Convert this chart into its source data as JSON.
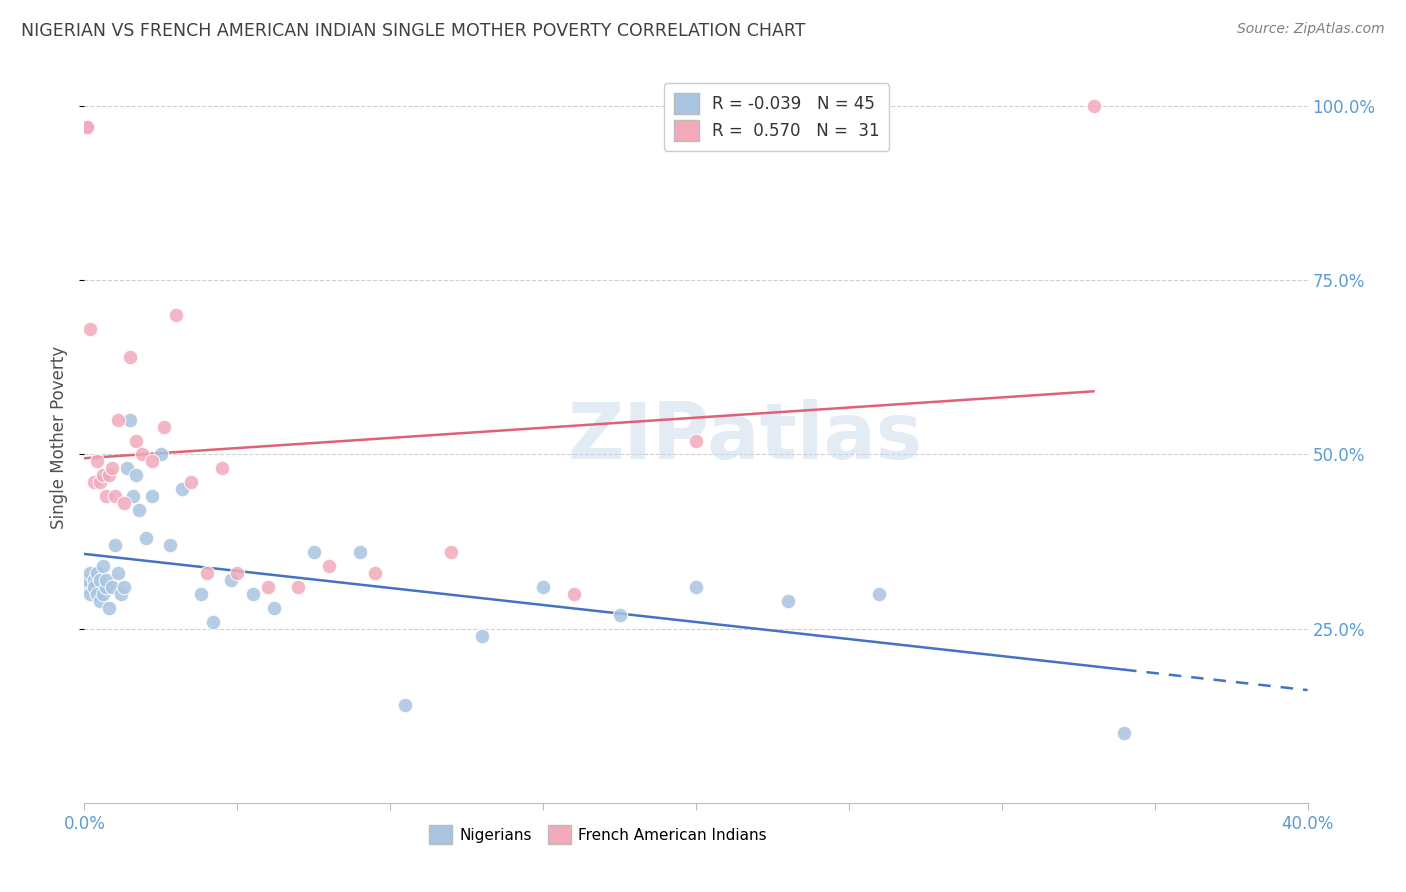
{
  "title": "NIGERIAN VS FRENCH AMERICAN INDIAN SINGLE MOTHER POVERTY CORRELATION CHART",
  "source": "Source: ZipAtlas.com",
  "ylabel": "Single Mother Poverty",
  "xmin": 0.0,
  "xmax": 0.4,
  "ymin": 0.0,
  "ymax": 1.05,
  "nigerian_r": "-0.039",
  "nigerian_n": "45",
  "french_r": "0.570",
  "french_n": "31",
  "nigerian_color": "#A8C4E0",
  "french_color": "#F2AABA",
  "nigerian_line_color": "#4472C4",
  "french_line_color": "#E0607A",
  "nigerian_x": [
    0.001,
    0.001,
    0.002,
    0.002,
    0.003,
    0.003,
    0.004,
    0.004,
    0.005,
    0.005,
    0.006,
    0.006,
    0.007,
    0.007,
    0.008,
    0.009,
    0.01,
    0.011,
    0.012,
    0.013,
    0.014,
    0.015,
    0.016,
    0.017,
    0.018,
    0.02,
    0.022,
    0.025,
    0.028,
    0.032,
    0.038,
    0.042,
    0.048,
    0.055,
    0.062,
    0.075,
    0.09,
    0.105,
    0.13,
    0.15,
    0.175,
    0.2,
    0.23,
    0.26,
    0.34
  ],
  "nigerian_y": [
    0.31,
    0.32,
    0.3,
    0.33,
    0.32,
    0.31,
    0.3,
    0.33,
    0.32,
    0.29,
    0.34,
    0.3,
    0.31,
    0.32,
    0.28,
    0.31,
    0.37,
    0.33,
    0.3,
    0.31,
    0.48,
    0.55,
    0.44,
    0.47,
    0.42,
    0.38,
    0.44,
    0.5,
    0.37,
    0.45,
    0.3,
    0.26,
    0.32,
    0.3,
    0.28,
    0.36,
    0.36,
    0.14,
    0.24,
    0.31,
    0.27,
    0.31,
    0.29,
    0.3,
    0.1
  ],
  "french_x": [
    0.001,
    0.001,
    0.002,
    0.003,
    0.004,
    0.005,
    0.006,
    0.007,
    0.008,
    0.009,
    0.01,
    0.011,
    0.013,
    0.015,
    0.017,
    0.019,
    0.022,
    0.026,
    0.03,
    0.035,
    0.04,
    0.045,
    0.05,
    0.06,
    0.07,
    0.08,
    0.095,
    0.12,
    0.16,
    0.2,
    0.33
  ],
  "french_y": [
    0.97,
    0.97,
    0.68,
    0.46,
    0.49,
    0.46,
    0.47,
    0.44,
    0.47,
    0.48,
    0.44,
    0.55,
    0.43,
    0.64,
    0.52,
    0.5,
    0.49,
    0.54,
    0.7,
    0.46,
    0.33,
    0.48,
    0.33,
    0.31,
    0.31,
    0.34,
    0.33,
    0.36,
    0.3,
    0.52,
    1.0
  ],
  "ytick_vals": [
    0.25,
    0.5,
    0.75,
    1.0
  ],
  "ytick_labels": [
    "25.0%",
    "50.0%",
    "75.0%",
    "100.0%"
  ],
  "xtick_positions": [
    0.0,
    0.05,
    0.1,
    0.15,
    0.2,
    0.25,
    0.3,
    0.35,
    0.4
  ],
  "axis_label_color": "#5B9BD5",
  "grid_color": "#D0D0D0",
  "title_color": "#404040",
  "source_color": "#808080",
  "ylabel_color": "#505050",
  "watermark_color": "#C8D8EC",
  "tick_label_color": "#5B9BD5"
}
